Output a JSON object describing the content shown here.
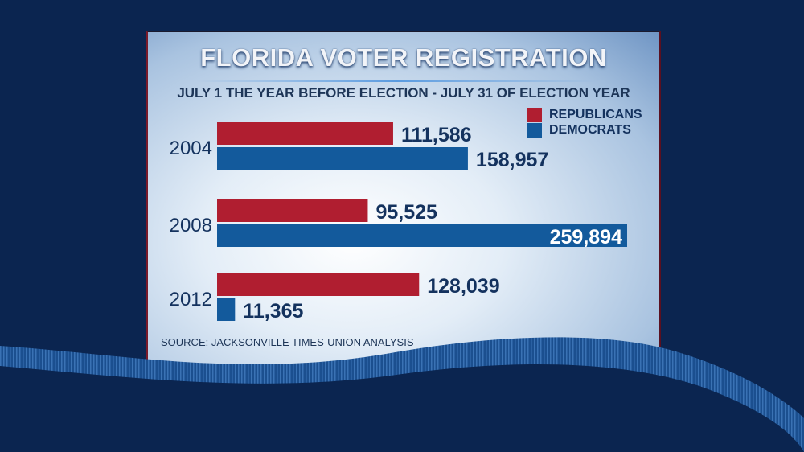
{
  "chart_data": {
    "type": "bar",
    "orientation": "horizontal",
    "title": "FLORIDA VOTER REGISTRATION",
    "subtitle": "JULY 1 THE YEAR BEFORE ELECTION - JULY 31 OF ELECTION YEAR",
    "categories": [
      "2004",
      "2008",
      "2012"
    ],
    "series": [
      {
        "name": "REPUBLICANS",
        "color": "#b01e30",
        "values": [
          111586,
          95525,
          128039
        ],
        "labels": [
          "111,586",
          "95,525",
          "128,039"
        ]
      },
      {
        "name": "DEMOCRATS",
        "color": "#135a9c",
        "values": [
          158957,
          259894,
          11365
        ],
        "labels": [
          "158,957",
          "259,894",
          "11,365"
        ]
      }
    ],
    "xlim": [
      0,
      260000
    ],
    "grid": false,
    "legend": "top-right",
    "source": "SOURCE: JACKSONVILLE TIMES-UNION ANALYSIS"
  },
  "colors": {
    "background": "#0b2550",
    "label_text": "#14325e"
  }
}
